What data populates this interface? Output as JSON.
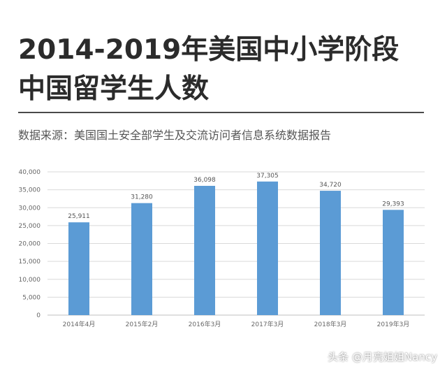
{
  "header": {
    "title_line1": "2014-2019年美国中小学阶段",
    "title_line2": "中国留学生人数",
    "source": "数据来源：美国国土安全部学生及交流访问者信息系统数据报告"
  },
  "watermark": "头条 @月亮姐姐Nancy",
  "colors": {
    "bar": "#5b9bd5",
    "grid": "#d9d9d9",
    "text": "#666666"
  },
  "chart_data": {
    "type": "bar",
    "title": "",
    "xlabel": "",
    "ylabel": "",
    "categories": [
      "2014年4月",
      "2015年2月",
      "2016年3月",
      "2017年3月",
      "2018年3月",
      "2019年3月"
    ],
    "values": [
      25911,
      31280,
      36098,
      37305,
      34720,
      29393
    ],
    "value_labels": [
      "25,911",
      "31,280",
      "36,098",
      "37,305",
      "34,720",
      "29,393"
    ],
    "ylim": [
      0,
      40000
    ],
    "yticks": [
      "0",
      "5,000",
      "10,000",
      "15,000",
      "20,000",
      "25,000",
      "30,000",
      "35,000",
      "40,000"
    ],
    "grid": true,
    "legend": "none"
  }
}
